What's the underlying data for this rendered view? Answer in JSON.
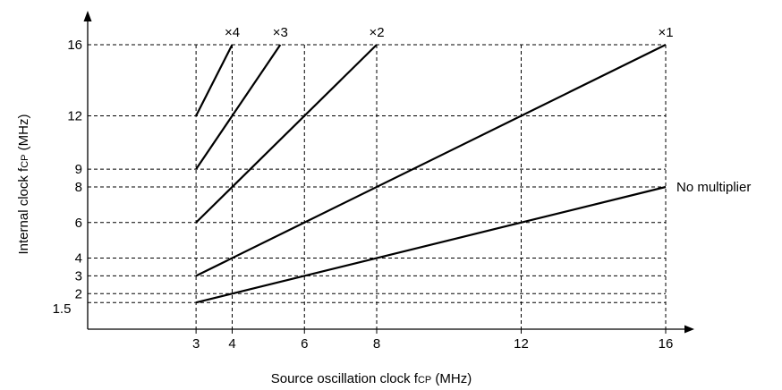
{
  "chart_data": {
    "type": "line",
    "xlabel": "Source oscillation clock f",
    "xlabel_sub": "CP",
    "xlabel_unit": " (MHz)",
    "ylabel": "Internal clock f",
    "ylabel_sub": "CP",
    "ylabel_unit": " (MHz)",
    "xlim": [
      0,
      16
    ],
    "ylim": [
      0,
      16
    ],
    "x_ticks": [
      3,
      4,
      6,
      8,
      12,
      16
    ],
    "x_tick_labels": [
      "3",
      "4",
      "6",
      "8",
      "12",
      "16"
    ],
    "y_ticks": [
      1.5,
      2,
      3,
      4,
      6,
      8,
      9,
      12,
      16
    ],
    "y_tick_labels": [
      "1.5",
      "2",
      "3",
      "4",
      "6",
      "8",
      "9",
      "12",
      "16"
    ],
    "grid": "dashed",
    "series": [
      {
        "name": "×4",
        "x": [
          3,
          4
        ],
        "y": [
          12,
          16
        ]
      },
      {
        "name": "×3",
        "x": [
          3,
          5.333
        ],
        "y": [
          9,
          16
        ]
      },
      {
        "name": "×2",
        "x": [
          3,
          8
        ],
        "y": [
          6,
          16
        ]
      },
      {
        "name": "×1",
        "x": [
          3,
          16
        ],
        "y": [
          3,
          16
        ]
      },
      {
        "name": "No multiplier",
        "x": [
          3,
          16
        ],
        "y": [
          1.5,
          8
        ]
      }
    ]
  }
}
